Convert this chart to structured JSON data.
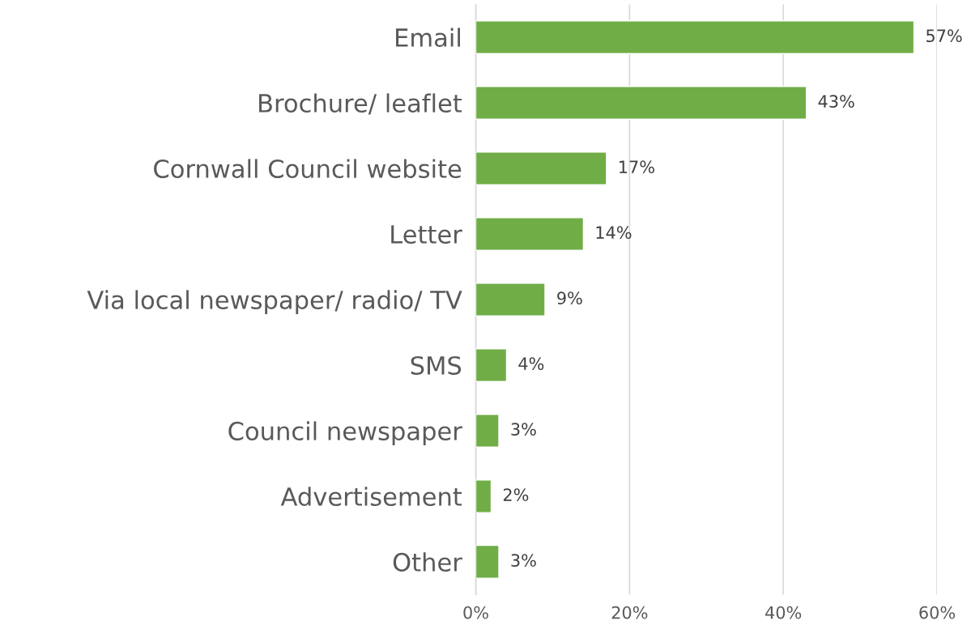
{
  "chart_data": {
    "type": "bar",
    "orientation": "horizontal",
    "categories": [
      "Email",
      "Brochure/ leaflet",
      "Cornwall Council website",
      "Letter",
      "Via local newspaper/ radio/ TV",
      "SMS",
      "Council newspaper",
      "Advertisement",
      "Other"
    ],
    "values": [
      57,
      43,
      17,
      14,
      9,
      4,
      3,
      2,
      3
    ],
    "value_labels": [
      "57%",
      "43%",
      "17%",
      "14%",
      "9%",
      "4%",
      "3%",
      "2%",
      "3%"
    ],
    "color": "#70ad47",
    "xlim": [
      0,
      60
    ],
    "xticks": [
      {
        "value": 0,
        "label": "0%"
      },
      {
        "value": 20,
        "label": "20%"
      },
      {
        "value": 40,
        "label": "40%"
      },
      {
        "value": 60,
        "label": "60%"
      }
    ],
    "grid": "x",
    "legend": false
  }
}
